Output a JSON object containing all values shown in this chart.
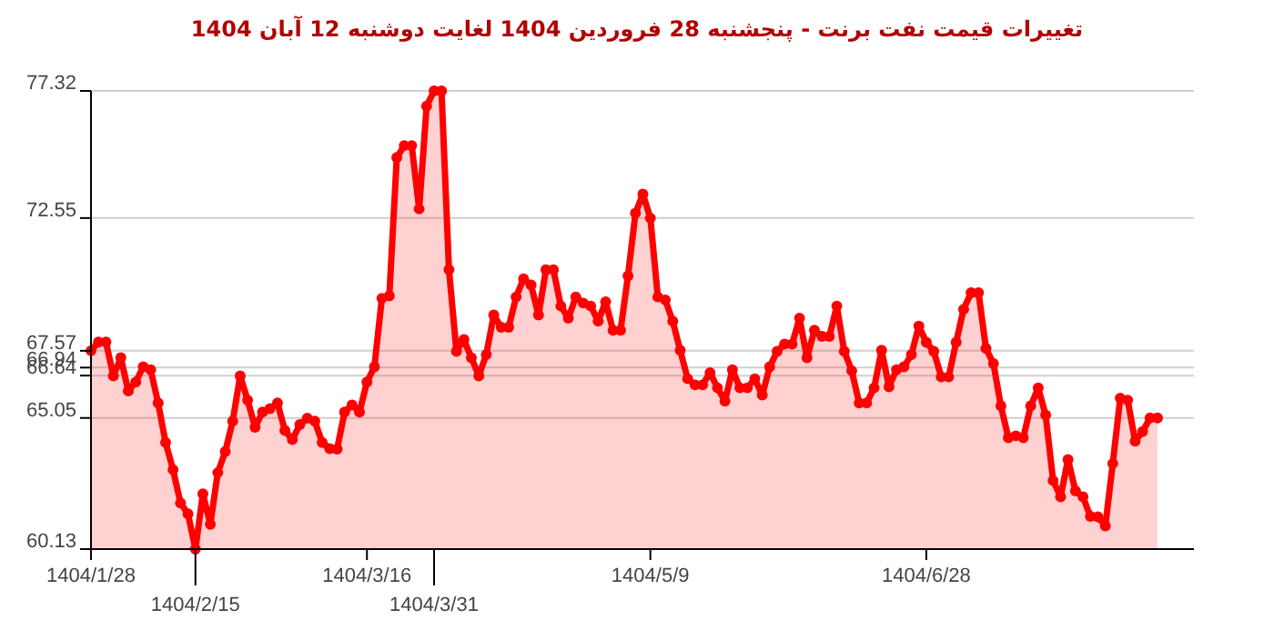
{
  "chart_data": {
    "type": "area",
    "title": "تغییرات قیمت نفت برنت - پنجشنبه  28 فروردین 1404 لغایت  دوشنبه  12 آبان 1404",
    "categories": [
      "1404/1/28",
      null,
      null,
      null,
      null,
      null,
      null,
      null,
      null,
      null,
      null,
      null,
      null,
      null,
      "1404/2/15",
      null,
      null,
      null,
      null,
      null,
      null,
      null,
      null,
      null,
      null,
      null,
      null,
      null,
      null,
      null,
      null,
      null,
      null,
      null,
      null,
      null,
      null,
      "1404/3/16",
      null,
      null,
      null,
      null,
      null,
      null,
      null,
      null,
      "1404/3/31",
      null,
      null,
      null,
      null,
      null,
      null,
      null,
      null,
      null,
      null,
      null,
      null,
      null,
      null,
      null,
      null,
      null,
      null,
      null,
      null,
      null,
      null,
      null,
      null,
      null,
      null,
      null,
      null,
      "1404/5/9",
      null,
      null,
      null,
      null,
      null,
      null,
      null,
      null,
      null,
      null,
      null,
      null,
      null,
      null,
      null,
      null,
      null,
      null,
      null,
      null,
      null,
      null,
      null,
      null,
      null,
      null,
      null,
      null,
      null,
      null,
      null,
      null,
      null,
      null,
      null,
      null,
      "1404/6/28",
      null,
      null,
      null,
      null,
      null,
      null,
      null,
      null,
      null,
      null,
      null,
      null,
      null,
      null,
      null,
      null,
      null,
      null,
      null,
      null,
      null,
      null,
      null,
      null,
      null,
      null,
      null,
      null,
      null,
      null,
      null
    ],
    "series": [
      {
        "color": "#ff0000",
        "values": [
          67.57,
          67.9,
          67.9,
          66.63,
          67.31,
          66.06,
          66.4,
          66.97,
          66.86,
          65.61,
          64.13,
          63.11,
          61.86,
          61.45,
          60.13,
          62.2,
          61.06,
          63.0,
          63.79,
          64.93,
          66.63,
          65.72,
          64.7,
          65.27,
          65.4,
          65.61,
          64.58,
          64.24,
          64.8,
          65.04,
          64.93,
          64.13,
          63.9,
          63.88,
          65.27,
          65.54,
          65.27,
          66.4,
          66.97,
          69.54,
          69.63,
          74.82,
          75.27,
          75.27,
          72.89,
          76.75,
          77.32,
          77.32,
          70.61,
          67.55,
          67.99,
          67.31,
          66.63,
          67.43,
          68.91,
          68.45,
          68.45,
          69.59,
          70.27,
          70.04,
          68.91,
          70.61,
          70.61,
          69.25,
          68.79,
          69.59,
          69.36,
          69.25,
          68.68,
          69.41,
          68.34,
          68.34,
          70.38,
          72.73,
          73.45,
          72.55,
          69.59,
          69.48,
          68.68,
          67.59,
          66.52,
          66.29,
          66.29,
          66.75,
          66.18,
          65.68,
          66.86,
          66.18,
          66.18,
          66.52,
          65.91,
          66.97,
          67.55,
          67.82,
          67.82,
          68.79,
          67.31,
          68.34,
          68.11,
          68.11,
          69.25,
          67.55,
          66.82,
          65.61,
          65.61,
          66.18,
          67.59,
          66.22,
          66.86,
          66.97,
          67.43,
          68.5,
          67.89,
          67.55,
          66.59,
          66.59,
          67.89,
          69.13,
          69.75,
          69.75,
          67.66,
          67.09,
          65.5,
          64.31,
          64.38,
          64.31,
          65.5,
          66.18,
          65.16,
          62.7,
          62.09,
          63.49,
          62.31,
          62.09,
          61.36,
          61.34,
          61.0,
          63.34,
          65.79,
          65.72,
          64.18,
          64.54,
          65.05,
          65.05
        ]
      }
    ],
    "ylim": [
      60.13,
      77.32
    ],
    "yticks": [
      60.13,
      65.05,
      66.64,
      66.94,
      67.57,
      72.55,
      77.32
    ],
    "grid": "y",
    "marker": "circle",
    "line_style": "solid"
  }
}
